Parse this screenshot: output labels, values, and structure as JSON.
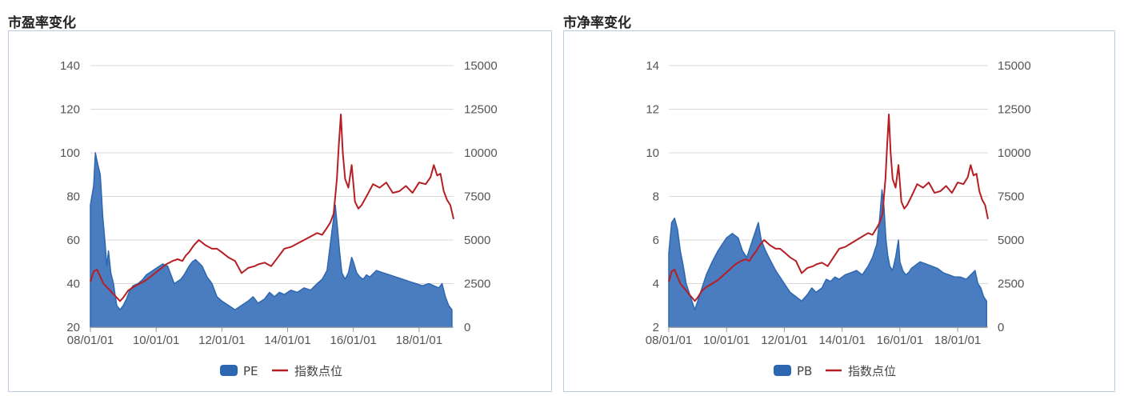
{
  "panels": [
    {
      "title": "市盈率变化"
    },
    {
      "title": "市净率变化"
    }
  ],
  "colors": {
    "area": "#2e67b1",
    "area_fill": "#4a7cc0",
    "line": "#b51f24",
    "grid": "#d9d9d9",
    "axis": "#555555"
  },
  "chart_data": [
    {
      "type": "area",
      "title": "市盈率变化",
      "x_tick_labels": [
        "08/01/01",
        "10/01/01",
        "12/01/01",
        "14/01/01",
        "16/01/01",
        "18/01/01"
      ],
      "x_ticks_year": [
        2008.0,
        2010.0,
        2012.0,
        2014.0,
        2016.0,
        2018.0
      ],
      "xlim": [
        2008.0,
        2019.05
      ],
      "left_axis": {
        "ylim": [
          20,
          140
        ],
        "ticks": [
          20,
          40,
          60,
          80,
          100,
          120,
          140
        ]
      },
      "right_axis": {
        "ylim": [
          0,
          15000
        ],
        "ticks": [
          0,
          2500,
          5000,
          7500,
          10000,
          12500,
          15000
        ]
      },
      "grid": true,
      "legend": {
        "position": "bottom"
      },
      "series": [
        {
          "name": "PE",
          "type": "area",
          "axis": "left",
          "x": [
            2008.0,
            2008.1,
            2008.15,
            2008.22,
            2008.3,
            2008.38,
            2008.45,
            2008.5,
            2008.55,
            2008.62,
            2008.7,
            2008.75,
            2008.8,
            2008.9,
            2009.0,
            2009.1,
            2009.2,
            2009.3,
            2009.45,
            2009.6,
            2009.7,
            2009.8,
            2010.0,
            2010.2,
            2010.35,
            2010.45,
            2010.55,
            2010.75,
            2010.85,
            2011.0,
            2011.1,
            2011.2,
            2011.4,
            2011.55,
            2011.7,
            2011.85,
            2012.0,
            2012.2,
            2012.4,
            2012.6,
            2012.8,
            2012.95,
            2013.1,
            2013.3,
            2013.45,
            2013.6,
            2013.75,
            2013.9,
            2014.1,
            2014.3,
            2014.5,
            2014.7,
            2014.9,
            2015.05,
            2015.2,
            2015.3,
            2015.4,
            2015.45,
            2015.52,
            2015.58,
            2015.65,
            2015.75,
            2015.85,
            2015.95,
            2016.0,
            2016.1,
            2016.2,
            2016.3,
            2016.4,
            2016.5,
            2016.7,
            2016.9,
            2017.1,
            2017.3,
            2017.5,
            2017.7,
            2017.9,
            2018.1,
            2018.3,
            2018.45,
            2018.6,
            2018.7,
            2018.8,
            2018.9,
            2019.0
          ],
          "values": [
            76,
            85,
            100,
            95,
            90,
            70,
            58,
            48,
            55,
            45,
            40,
            35,
            30,
            28,
            30,
            33,
            37,
            39,
            40,
            42,
            44,
            45,
            47,
            49,
            48,
            44,
            40,
            42,
            44,
            48,
            50,
            51,
            48,
            43,
            40,
            34,
            32,
            30,
            28,
            30,
            32,
            34,
            31,
            33,
            36,
            34,
            36,
            35,
            37,
            36,
            38,
            37,
            40,
            42,
            46,
            58,
            70,
            76,
            65,
            55,
            45,
            42,
            45,
            52,
            50,
            45,
            43,
            42,
            44,
            43,
            46,
            45,
            44,
            43,
            42,
            41,
            40,
            39,
            40,
            39,
            38,
            40,
            34,
            30,
            28
          ]
        },
        {
          "name": "指数点位",
          "type": "line",
          "axis": "right",
          "x": [
            2008.0,
            2008.1,
            2008.2,
            2008.3,
            2008.4,
            2008.5,
            2008.6,
            2008.7,
            2008.8,
            2008.9,
            2009.0,
            2009.15,
            2009.3,
            2009.5,
            2009.7,
            2009.9,
            2010.1,
            2010.3,
            2010.5,
            2010.65,
            2010.8,
            2010.9,
            2011.0,
            2011.15,
            2011.3,
            2011.5,
            2011.7,
            2011.85,
            2012.0,
            2012.2,
            2012.4,
            2012.6,
            2012.8,
            2013.0,
            2013.1,
            2013.3,
            2013.5,
            2013.7,
            2013.9,
            2014.1,
            2014.3,
            2014.5,
            2014.7,
            2014.9,
            2015.05,
            2015.2,
            2015.3,
            2015.4,
            2015.45,
            2015.5,
            2015.56,
            2015.62,
            2015.68,
            2015.75,
            2015.85,
            2015.95,
            2016.05,
            2016.15,
            2016.25,
            2016.4,
            2016.6,
            2016.8,
            2017.0,
            2017.2,
            2017.4,
            2017.6,
            2017.8,
            2018.0,
            2018.2,
            2018.35,
            2018.45,
            2018.55,
            2018.65,
            2018.75,
            2018.85,
            2018.95,
            2019.05
          ],
          "values": [
            2600,
            3200,
            3300,
            2900,
            2500,
            2300,
            2100,
            1900,
            1700,
            1500,
            1700,
            2100,
            2300,
            2500,
            2700,
            3000,
            3300,
            3600,
            3800,
            3900,
            3800,
            4100,
            4300,
            4700,
            5000,
            4700,
            4500,
            4500,
            4300,
            4000,
            3800,
            3100,
            3400,
            3500,
            3600,
            3700,
            3500,
            4000,
            4500,
            4600,
            4800,
            5000,
            5200,
            5400,
            5300,
            5700,
            6000,
            6500,
            7500,
            8500,
            10500,
            12200,
            10000,
            8500,
            8000,
            9300,
            7200,
            6800,
            7000,
            7500,
            8200,
            8000,
            8300,
            7700,
            7800,
            8100,
            7700,
            8300,
            8200,
            8600,
            9300,
            8700,
            8800,
            7800,
            7300,
            7000,
            6200
          ]
        }
      ]
    },
    {
      "type": "area",
      "title": "市净率变化",
      "x_tick_labels": [
        "08/01/01",
        "10/01/01",
        "12/01/01",
        "14/01/01",
        "16/01/01",
        "18/01/01"
      ],
      "x_ticks_year": [
        2008.0,
        2010.0,
        2012.0,
        2014.0,
        2016.0,
        2018.0
      ],
      "xlim": [
        2008.0,
        2019.05
      ],
      "left_axis": {
        "ylim": [
          2,
          14
        ],
        "ticks": [
          2,
          4,
          6,
          8,
          10,
          12,
          14
        ]
      },
      "right_axis": {
        "ylim": [
          0,
          15000
        ],
        "ticks": [
          0,
          2500,
          5000,
          7500,
          10000,
          12500,
          15000
        ]
      },
      "grid": true,
      "legend": {
        "position": "bottom"
      },
      "series": [
        {
          "name": "PB",
          "type": "area",
          "axis": "left",
          "x": [
            2008.0,
            2008.1,
            2008.2,
            2008.3,
            2008.4,
            2008.5,
            2008.6,
            2008.7,
            2008.8,
            2008.9,
            2009.0,
            2009.15,
            2009.3,
            2009.5,
            2009.7,
            2009.85,
            2010.0,
            2010.2,
            2010.4,
            2010.55,
            2010.7,
            2010.85,
            2011.0,
            2011.1,
            2011.2,
            2011.35,
            2011.5,
            2011.7,
            2011.85,
            2012.0,
            2012.2,
            2012.4,
            2012.6,
            2012.8,
            2012.95,
            2013.1,
            2013.3,
            2013.45,
            2013.6,
            2013.75,
            2013.9,
            2014.1,
            2014.3,
            2014.5,
            2014.7,
            2014.9,
            2015.05,
            2015.2,
            2015.3,
            2015.38,
            2015.45,
            2015.52,
            2015.58,
            2015.65,
            2015.75,
            2015.85,
            2015.95,
            2016.0,
            2016.1,
            2016.2,
            2016.3,
            2016.4,
            2016.5,
            2016.7,
            2016.9,
            2017.1,
            2017.3,
            2017.5,
            2017.7,
            2017.9,
            2018.1,
            2018.3,
            2018.45,
            2018.6,
            2018.7,
            2018.8,
            2018.9,
            2019.0
          ],
          "values": [
            5.4,
            6.8,
            7.0,
            6.5,
            5.5,
            4.8,
            4.0,
            3.6,
            3.2,
            2.8,
            3.2,
            3.8,
            4.4,
            5.0,
            5.5,
            5.8,
            6.1,
            6.3,
            6.1,
            5.5,
            5.2,
            5.8,
            6.4,
            6.8,
            6.0,
            5.5,
            5.1,
            4.6,
            4.3,
            4.0,
            3.6,
            3.4,
            3.2,
            3.5,
            3.8,
            3.6,
            3.8,
            4.2,
            4.1,
            4.3,
            4.2,
            4.4,
            4.5,
            4.6,
            4.4,
            4.8,
            5.2,
            5.8,
            7.0,
            8.3,
            7.5,
            6.0,
            5.3,
            4.8,
            4.6,
            5.2,
            6.0,
            5.0,
            4.6,
            4.4,
            4.5,
            4.7,
            4.8,
            5.0,
            4.9,
            4.8,
            4.7,
            4.5,
            4.4,
            4.3,
            4.3,
            4.2,
            4.4,
            4.6,
            4.0,
            3.8,
            3.4,
            3.2
          ]
        },
        {
          "name": "指数点位",
          "type": "line",
          "axis": "right",
          "x": [
            2008.0,
            2008.1,
            2008.2,
            2008.3,
            2008.4,
            2008.5,
            2008.6,
            2008.7,
            2008.8,
            2008.9,
            2009.0,
            2009.15,
            2009.3,
            2009.5,
            2009.7,
            2009.9,
            2010.1,
            2010.3,
            2010.5,
            2010.65,
            2010.8,
            2010.9,
            2011.0,
            2011.15,
            2011.3,
            2011.5,
            2011.7,
            2011.85,
            2012.0,
            2012.2,
            2012.4,
            2012.6,
            2012.8,
            2013.0,
            2013.1,
            2013.3,
            2013.5,
            2013.7,
            2013.9,
            2014.1,
            2014.3,
            2014.5,
            2014.7,
            2014.9,
            2015.05,
            2015.2,
            2015.3,
            2015.4,
            2015.45,
            2015.5,
            2015.56,
            2015.62,
            2015.68,
            2015.75,
            2015.85,
            2015.95,
            2016.05,
            2016.15,
            2016.25,
            2016.4,
            2016.6,
            2016.8,
            2017.0,
            2017.2,
            2017.4,
            2017.6,
            2017.8,
            2018.0,
            2018.2,
            2018.35,
            2018.45,
            2018.55,
            2018.65,
            2018.75,
            2018.85,
            2018.95,
            2019.05
          ],
          "values": [
            2600,
            3200,
            3300,
            2900,
            2500,
            2300,
            2100,
            1900,
            1700,
            1500,
            1700,
            2100,
            2300,
            2500,
            2700,
            3000,
            3300,
            3600,
            3800,
            3900,
            3800,
            4100,
            4300,
            4700,
            5000,
            4700,
            4500,
            4500,
            4300,
            4000,
            3800,
            3100,
            3400,
            3500,
            3600,
            3700,
            3500,
            4000,
            4500,
            4600,
            4800,
            5000,
            5200,
            5400,
            5300,
            5700,
            6000,
            6500,
            7500,
            8500,
            10500,
            12200,
            10000,
            8500,
            8000,
            9300,
            7200,
            6800,
            7000,
            7500,
            8200,
            8000,
            8300,
            7700,
            7800,
            8100,
            7700,
            8300,
            8200,
            8600,
            9300,
            8700,
            8800,
            7800,
            7300,
            7000,
            6200
          ]
        }
      ]
    }
  ]
}
